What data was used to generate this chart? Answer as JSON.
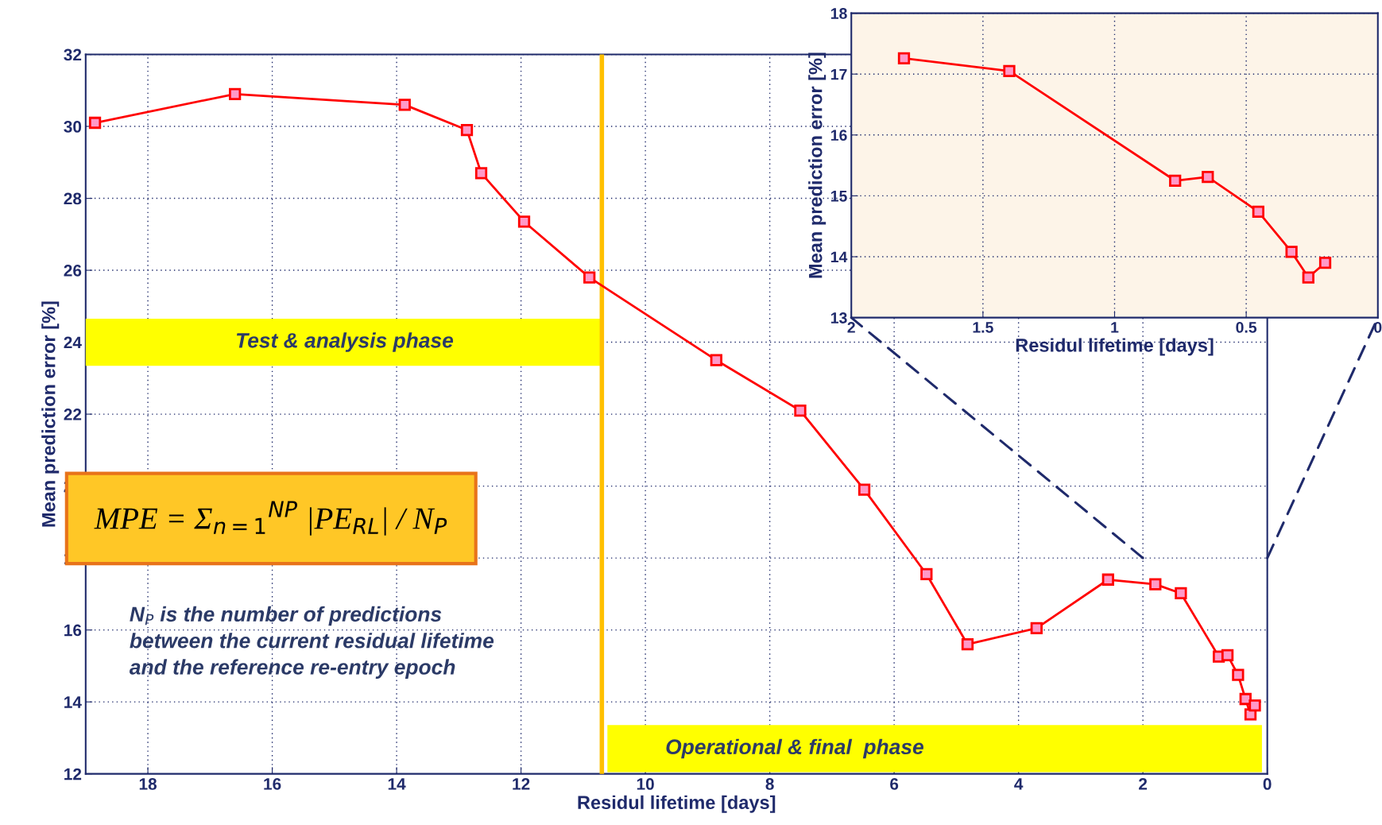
{
  "chart_data": [
    {
      "type": "line",
      "xlabel": "Residul lifetime [days]",
      "ylabel": "Mean prediction error [%]",
      "xlim": [
        19,
        0
      ],
      "xticks": [
        18,
        16,
        14,
        12,
        10,
        8,
        6,
        4,
        2,
        0
      ],
      "ylim": [
        12,
        32
      ],
      "yticks": [
        12,
        14,
        16,
        18,
        20,
        22,
        24,
        26,
        28,
        30,
        32
      ],
      "grid": true,
      "marker": "square",
      "line_style": "solid",
      "legend": false,
      "series": [
        {
          "color": "#ff0000",
          "x": [
            18.85,
            16.6,
            13.87,
            12.87,
            12.64,
            11.95,
            10.9,
            8.86,
            7.51,
            6.48,
            5.48,
            4.82,
            3.71,
            2.56,
            1.8,
            1.39,
            0.78,
            0.64,
            0.47,
            0.35,
            0.27,
            0.2
          ],
          "values": [
            30.1,
            30.9,
            30.6,
            29.9,
            28.7,
            27.35,
            25.8,
            23.5,
            22.1,
            19.9,
            17.55,
            15.6,
            16.05,
            17.4,
            17.27,
            17.02,
            15.26,
            15.3,
            14.75,
            14.08,
            13.65,
            13.9
          ]
        }
      ],
      "ref_lines": [
        {
          "axis": "x",
          "value": 10.7,
          "color": "#ffc000",
          "line_style": "solid"
        }
      ],
      "annotations": [
        "Test & analysis phase",
        "Operational & final  phase",
        "MPE = Σ$_{n=1}$$^{NP}$ |PE$_{RL}$| / N$_{P}$",
        "N$_{P}$ is the number of predictions\nbetween the current residual lifetime\nand the reference re-entry epoch"
      ]
    },
    {
      "type": "line",
      "xlabel": "Residul lifetime [days]",
      "ylabel": "Mean prediction error [%]",
      "xlim": [
        2,
        0
      ],
      "xticks": [
        2,
        1.5,
        1,
        0.5,
        0
      ],
      "ylim": [
        13,
        18
      ],
      "yticks": [
        13,
        14,
        15,
        16,
        17,
        18
      ],
      "grid": true,
      "marker": "square",
      "line_style": "solid",
      "legend": false,
      "series": [
        {
          "color": "#ff0000",
          "x": [
            1.8,
            1.4,
            0.77,
            0.646,
            0.454,
            0.328,
            0.264,
            0.2
          ],
          "values": [
            17.26,
            17.05,
            15.25,
            15.31,
            14.74,
            14.08,
            13.66,
            13.9
          ]
        }
      ]
    }
  ]
}
